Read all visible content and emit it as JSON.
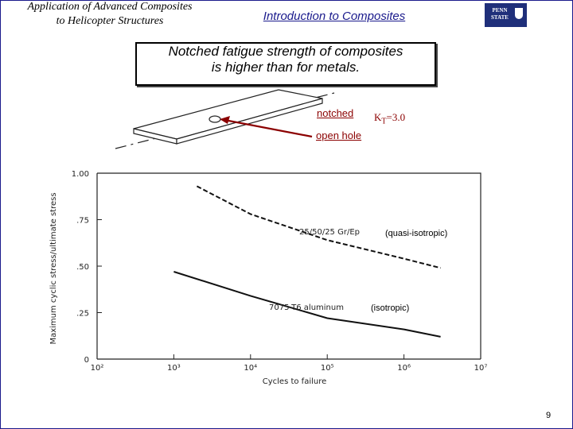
{
  "header": {
    "left_title_line1": "Application of Advanced Composites",
    "left_title_line2": "to Helicopter Structures",
    "section_title": "Introduction to Composites",
    "logo_text": "PENN STATE"
  },
  "headline": {
    "line1": "Notched fatigue strength of composites",
    "line2": "is higher than for metals."
  },
  "specimen": {
    "notched_label": "notched",
    "kt_label": "K",
    "kt_sub": "T",
    "kt_value": "=3.0",
    "open_hole_label": "open hole"
  },
  "footer": {
    "page_number": "9"
  },
  "colors": {
    "frame": "#1a1a8c",
    "accent_text": "#8b0000",
    "arrow": "#8b0000"
  },
  "chart_data": {
    "type": "line",
    "xlabel": "Cycles to failure",
    "ylabel": "Maximum cyclic stress/ultimate stress",
    "x_scale": "log",
    "x_ticks": [
      "10²",
      "10³",
      "10⁴",
      "10⁵",
      "10⁶",
      "10⁷"
    ],
    "x_tick_exponents": [
      2,
      3,
      4,
      5,
      6,
      7
    ],
    "y_ticks": [
      "1.00",
      ".75",
      ".50",
      ".25",
      "0"
    ],
    "y_tick_values": [
      1.0,
      0.75,
      0.5,
      0.25,
      0
    ],
    "xlim": [
      100,
      10000000
    ],
    "ylim": [
      0,
      1.0
    ],
    "grid": false,
    "series": [
      {
        "name": "25/50/25 Gr/Ep",
        "annotation": "(quasi-isotropic)",
        "x": [
          2000,
          10000,
          100000,
          1000000,
          3000000
        ],
        "y": [
          0.93,
          0.78,
          0.64,
          0.54,
          0.49
        ]
      },
      {
        "name": "7075-T6 aluminum",
        "annotation": "(isotropic)",
        "x": [
          1000,
          10000,
          100000,
          1000000,
          3000000
        ],
        "y": [
          0.47,
          0.34,
          0.22,
          0.16,
          0.12
        ]
      }
    ]
  }
}
